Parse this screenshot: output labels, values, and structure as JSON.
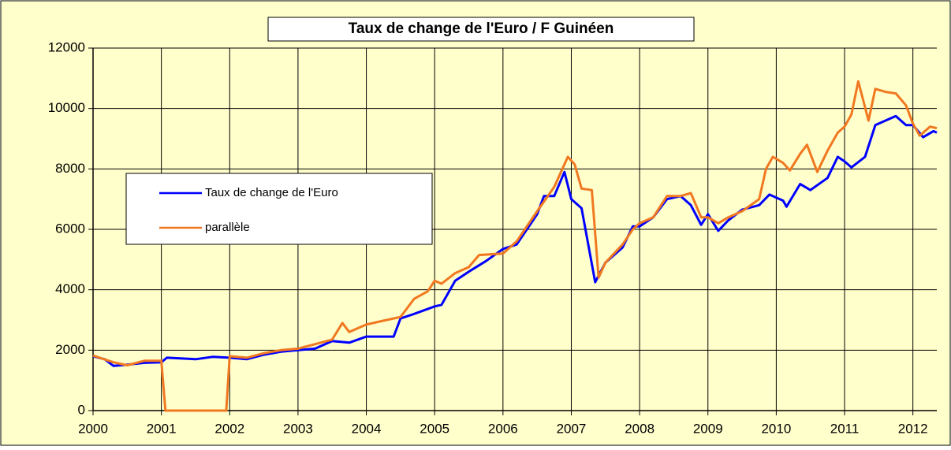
{
  "chart_data": {
    "type": "line",
    "title": "Taux de change de l'Euro / F Guinéen",
    "xlim": [
      2000,
      2012.35
    ],
    "xticks": [
      2000,
      2001,
      2002,
      2003,
      2004,
      2005,
      2006,
      2007,
      2008,
      2009,
      2010,
      2011,
      2012
    ],
    "ylim": [
      0,
      12000
    ],
    "yticks": [
      0,
      2000,
      4000,
      6000,
      8000,
      10000,
      12000
    ],
    "grid": true,
    "legend": "center-left",
    "series": [
      {
        "name": "Taux de change de l'Euro",
        "color": "#0000ff",
        "x": [
          2000.0,
          2000.17,
          2000.3,
          2000.5,
          2000.75,
          2001.0,
          2001.08,
          2001.5,
          2001.75,
          2002.0,
          2002.25,
          2002.5,
          2002.75,
          2003.0,
          2003.25,
          2003.5,
          2003.75,
          2004.0,
          2004.4,
          2004.5,
          2004.7,
          2005.0,
          2005.1,
          2005.3,
          2005.5,
          2005.75,
          2006.0,
          2006.2,
          2006.5,
          2006.6,
          2006.75,
          2006.9,
          2007.0,
          2007.15,
          2007.35,
          2007.5,
          2007.75,
          2007.9,
          2008.0,
          2008.2,
          2008.4,
          2008.6,
          2008.75,
          2008.9,
          2009.0,
          2009.15,
          2009.3,
          2009.5,
          2009.75,
          2009.9,
          2010.1,
          2010.15,
          2010.35,
          2010.5,
          2010.75,
          2010.9,
          2011.0,
          2011.1,
          2011.3,
          2011.45,
          2011.6,
          2011.75,
          2011.9,
          2012.0,
          2012.15,
          2012.3,
          2012.35
        ],
        "values": [
          1800,
          1700,
          1480,
          1520,
          1580,
          1600,
          1750,
          1700,
          1780,
          1750,
          1700,
          1850,
          1950,
          2000,
          2050,
          2300,
          2250,
          2450,
          2450,
          3050,
          3200,
          3450,
          3500,
          4300,
          4600,
          4950,
          5350,
          5500,
          6500,
          7100,
          7100,
          7900,
          7000,
          6700,
          4250,
          4900,
          5400,
          6100,
          6100,
          6400,
          7000,
          7100,
          6800,
          6150,
          6500,
          5950,
          6300,
          6650,
          6800,
          7150,
          6950,
          6750,
          7500,
          7300,
          7700,
          8400,
          8250,
          8050,
          8400,
          9450,
          9600,
          9750,
          9450,
          9450,
          9050,
          9250,
          9200
        ]
      },
      {
        "name": "parallèle",
        "color": "#f07820",
        "x": [
          2000.0,
          2000.3,
          2000.5,
          2000.75,
          2001.0,
          2001.06,
          2001.95,
          2002.0,
          2002.25,
          2002.5,
          2002.75,
          2003.0,
          2003.25,
          2003.5,
          2003.65,
          2003.75,
          2004.0,
          2004.2,
          2004.5,
          2004.7,
          2004.9,
          2005.0,
          2005.1,
          2005.3,
          2005.5,
          2005.65,
          2006.0,
          2006.2,
          2006.5,
          2006.75,
          2006.95,
          2007.05,
          2007.15,
          2007.3,
          2007.4,
          2007.5,
          2007.75,
          2007.9,
          2008.0,
          2008.2,
          2008.4,
          2008.6,
          2008.75,
          2008.9,
          2009.0,
          2009.15,
          2009.3,
          2009.5,
          2009.75,
          2009.85,
          2009.95,
          2010.1,
          2010.2,
          2010.35,
          2010.45,
          2010.6,
          2010.75,
          2010.9,
          2011.0,
          2011.1,
          2011.2,
          2011.35,
          2011.45,
          2011.6,
          2011.75,
          2011.9,
          2012.0,
          2012.1,
          2012.25,
          2012.35
        ],
        "values": [
          1820,
          1600,
          1500,
          1650,
          1650,
          0,
          0,
          1800,
          1750,
          1900,
          2000,
          2050,
          2200,
          2350,
          2900,
          2600,
          2850,
          2950,
          3100,
          3700,
          3950,
          4300,
          4200,
          4550,
          4750,
          5150,
          5200,
          5600,
          6600,
          7400,
          8400,
          8150,
          7350,
          7300,
          4400,
          4900,
          5500,
          6000,
          6200,
          6400,
          7100,
          7100,
          7200,
          6400,
          6400,
          6200,
          6400,
          6600,
          7000,
          8000,
          8400,
          8200,
          7950,
          8500,
          8800,
          7900,
          8600,
          9200,
          9400,
          9800,
          10900,
          9600,
          10650,
          10550,
          10500,
          10100,
          9500,
          9100,
          9400,
          9350
        ]
      }
    ]
  }
}
